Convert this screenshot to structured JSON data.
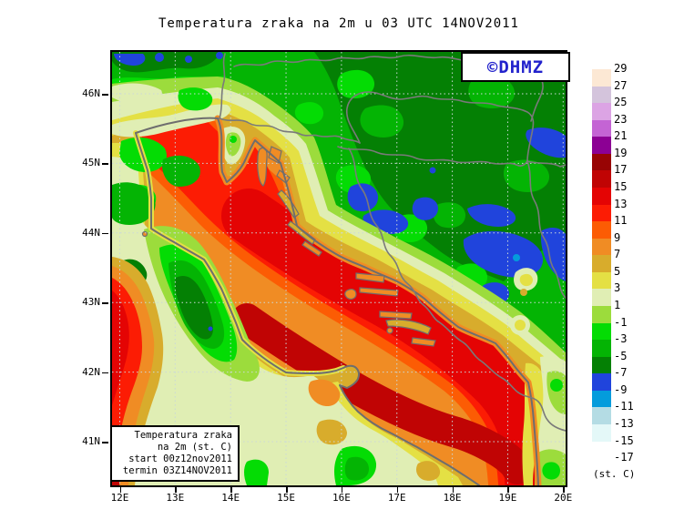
{
  "title": "Temperatura zraka na 2m u 03 UTC 14NOV2011",
  "logo": {
    "label": "©DHMZ",
    "color": "#2222CC"
  },
  "info_box": {
    "line1": "Temperatura zraka",
    "line2": "na 2m (st. C)",
    "line3": "start 00z12nov2011",
    "line4": "termin 03Z14NOV2011"
  },
  "axes": {
    "lat": [
      "46N",
      "45N",
      "44N",
      "43N",
      "42N",
      "41N"
    ],
    "lon": [
      "12E",
      "13E",
      "14E",
      "15E",
      "16E",
      "17E",
      "18E",
      "19E",
      "20E"
    ]
  },
  "colorbar": {
    "unit": "(st. C)",
    "labels": [
      "29",
      "27",
      "25",
      "23",
      "21",
      "19",
      "17",
      "15",
      "13",
      "11",
      "9",
      "7",
      "5",
      "3",
      "1",
      "-1",
      "-3",
      "-5",
      "-7",
      "-9",
      "-11",
      "-13",
      "-15",
      "-17"
    ],
    "colors": [
      "#FCE8D4",
      "#D4C4DC",
      "#DCA4E4",
      "#C464D4",
      "#8C0094",
      "#980404",
      "#C00404",
      "#E40404",
      "#FC1C04",
      "#FC5C04",
      "#F08C24",
      "#D8AC2C",
      "#E4E044",
      "#E0EEB4",
      "#9CDC3C",
      "#04DC04",
      "#04B404",
      "#048004",
      "#2044DC",
      "#049CDC",
      "#B4DCE4",
      "#E4F8F8",
      "#FFFFFF"
    ]
  }
}
